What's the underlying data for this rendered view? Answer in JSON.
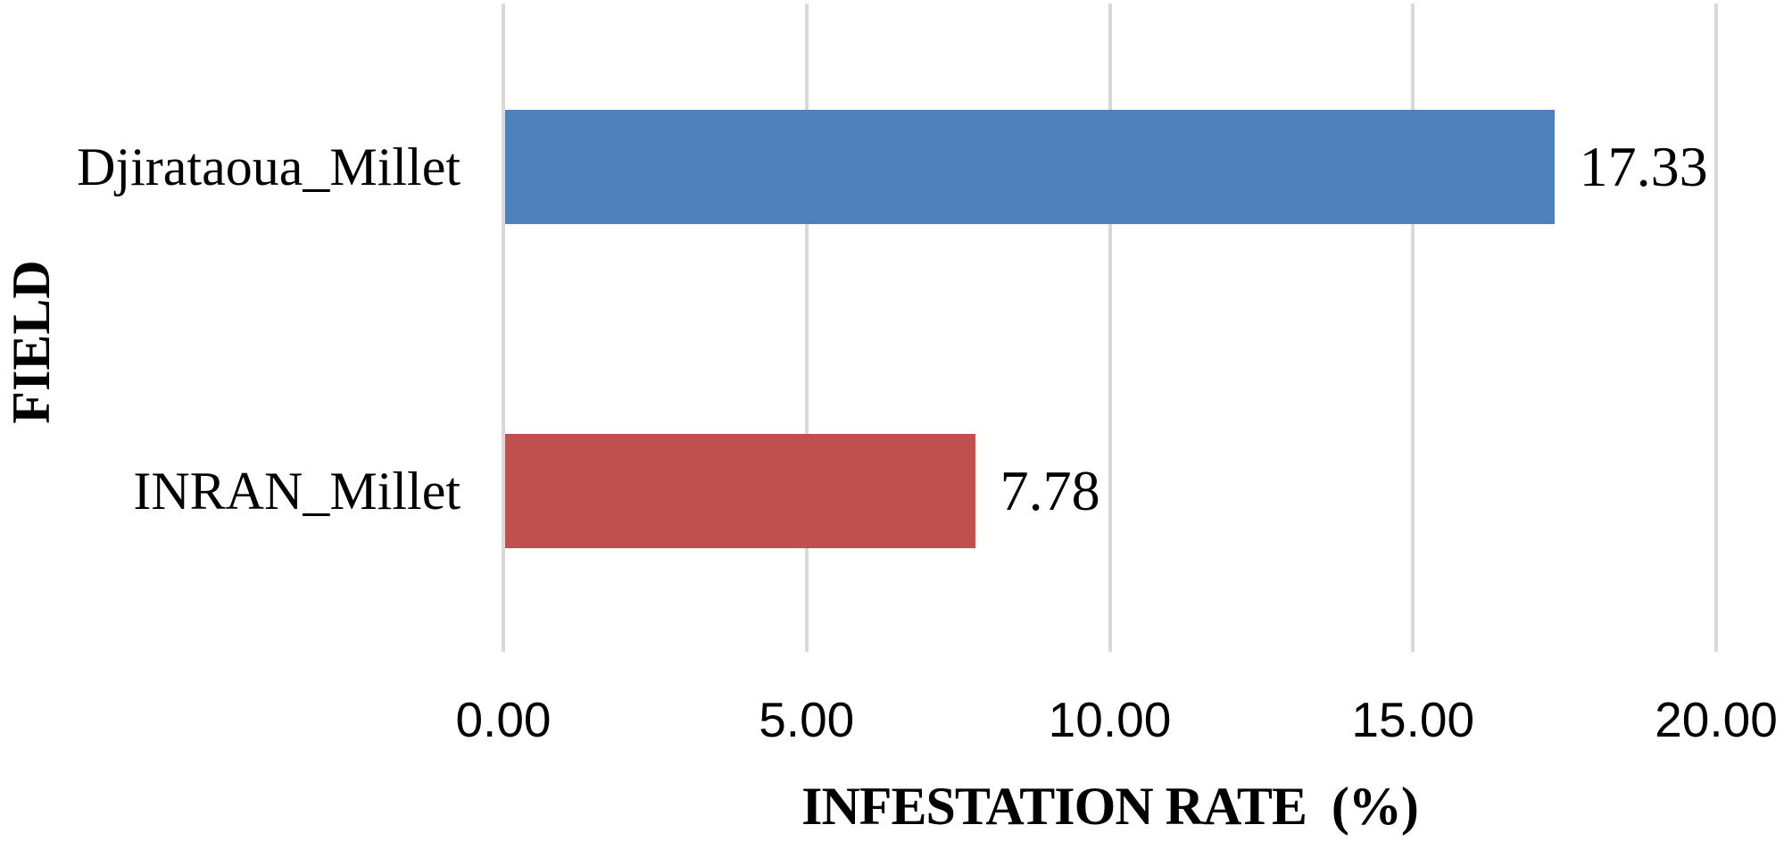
{
  "chart_data": {
    "type": "bar",
    "orientation": "horizontal",
    "title": "",
    "xlabel": "INFESTATION RATE  (%)",
    "ylabel": "FIELD",
    "categories": [
      "Djirataoua_Millet",
      "INRAN_Millet"
    ],
    "values": [
      17.33,
      7.78
    ],
    "value_labels": [
      "17.33",
      "7.78"
    ],
    "bar_colors": [
      "#4F81BD",
      "#C0504D"
    ],
    "xlim": [
      0,
      20
    ],
    "x_ticks": [
      {
        "value": 0,
        "label": "0.00"
      },
      {
        "value": 5,
        "label": "5.00"
      },
      {
        "value": 10,
        "label": "10.00"
      },
      {
        "value": 15,
        "label": "15.00"
      },
      {
        "value": 20,
        "label": "20.00"
      }
    ],
    "grid": "vertical-gridlines-on",
    "gridline_color": "#D9D9D9",
    "legend": "none",
    "background_color": "#FFFFFF",
    "text_color": "#000000"
  }
}
